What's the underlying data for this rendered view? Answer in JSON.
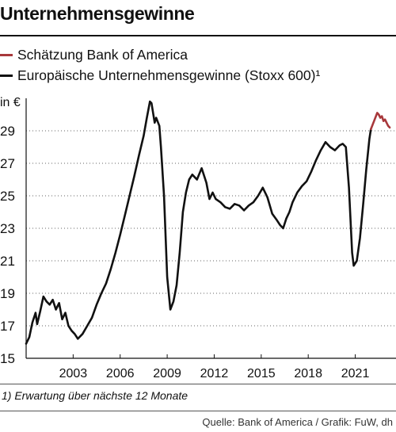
{
  "title": "Unternehmensgewinne",
  "legend": [
    {
      "label": "Schätzung Bank of America",
      "color": "#a8383b"
    },
    {
      "label": "Europäische Unternehmensgewinne (Stoxx 600)¹",
      "color": "#111111"
    }
  ],
  "footnote": "1) Erwartung über nächste 12 Monate",
  "source": "Quelle: Bank of America / Grafik: FuW, dh",
  "chart_data": {
    "type": "line",
    "ylabel": "in €",
    "ylim": [
      15,
      31
    ],
    "xlim": [
      2000.0,
      2023.6
    ],
    "y_ticks": [
      15,
      17,
      19,
      21,
      23,
      25,
      27,
      29
    ],
    "x_ticks": [
      2003,
      2006,
      2009,
      2012,
      2015,
      2018,
      2021
    ],
    "grid": "horizontal dotted",
    "series": [
      {
        "name": "Europäische Unternehmensgewinne (Stoxx 600)¹",
        "color": "#111111",
        "x": [
          2000.0,
          2000.2,
          2000.4,
          2000.6,
          2000.7,
          2000.9,
          2001.1,
          2001.3,
          2001.5,
          2001.7,
          2001.9,
          2002.1,
          2002.3,
          2002.5,
          2002.7,
          2002.9,
          2003.1,
          2003.3,
          2003.6,
          2003.9,
          2004.2,
          2004.5,
          2004.8,
          2005.1,
          2005.4,
          2005.7,
          2006.0,
          2006.3,
          2006.6,
          2006.9,
          2007.2,
          2007.5,
          2007.7,
          2007.9,
          2008.0,
          2008.2,
          2008.3,
          2008.5,
          2008.6,
          2008.8,
          2009.0,
          2009.2,
          2009.4,
          2009.6,
          2009.8,
          2010.0,
          2010.2,
          2010.4,
          2010.6,
          2010.9,
          2011.2,
          2011.5,
          2011.7,
          2011.9,
          2012.1,
          2012.4,
          2012.7,
          2013.0,
          2013.3,
          2013.6,
          2013.9,
          2014.2,
          2014.5,
          2014.8,
          2015.1,
          2015.4,
          2015.7,
          2016.0,
          2016.2,
          2016.4,
          2016.6,
          2016.8,
          2017.0,
          2017.3,
          2017.6,
          2017.9,
          2018.2,
          2018.5,
          2018.8,
          2019.1,
          2019.4,
          2019.7,
          2020.0,
          2020.2,
          2020.4,
          2020.6,
          2020.8,
          2020.9,
          2021.1,
          2021.3,
          2021.5,
          2021.7,
          2021.9,
          2022.0
        ],
        "y": [
          15.9,
          16.3,
          17.2,
          17.8,
          17.1,
          17.9,
          18.8,
          18.5,
          18.3,
          18.6,
          18.0,
          18.4,
          17.4,
          17.8,
          17.0,
          16.7,
          16.5,
          16.2,
          16.5,
          17.0,
          17.5,
          18.3,
          19.0,
          19.6,
          20.5,
          21.5,
          22.6,
          23.8,
          25.0,
          26.2,
          27.5,
          28.7,
          29.8,
          30.8,
          30.7,
          29.5,
          29.8,
          29.3,
          28.0,
          25.0,
          20.0,
          18.0,
          18.5,
          19.5,
          21.5,
          24.0,
          25.2,
          26.0,
          26.3,
          26.0,
          26.7,
          25.8,
          24.8,
          25.2,
          24.8,
          24.6,
          24.3,
          24.2,
          24.5,
          24.4,
          24.1,
          24.4,
          24.6,
          25.0,
          25.5,
          24.9,
          23.9,
          23.5,
          23.2,
          23.0,
          23.6,
          24.0,
          24.6,
          25.2,
          25.6,
          25.9,
          26.5,
          27.2,
          27.8,
          28.3,
          28.0,
          27.8,
          28.1,
          28.2,
          28.0,
          25.5,
          21.5,
          20.7,
          21.0,
          22.4,
          24.4,
          26.6,
          28.5,
          29.1
        ]
      },
      {
        "name": "Schätzung Bank of America",
        "color": "#a8383b",
        "x": [
          2022.0,
          2022.2,
          2022.4,
          2022.5,
          2022.6,
          2022.7,
          2022.8,
          2022.9,
          2023.0,
          2023.1,
          2023.2
        ],
        "y": [
          29.1,
          29.6,
          30.1,
          30.0,
          29.8,
          29.9,
          29.6,
          29.7,
          29.5,
          29.3,
          29.2
        ]
      }
    ]
  }
}
